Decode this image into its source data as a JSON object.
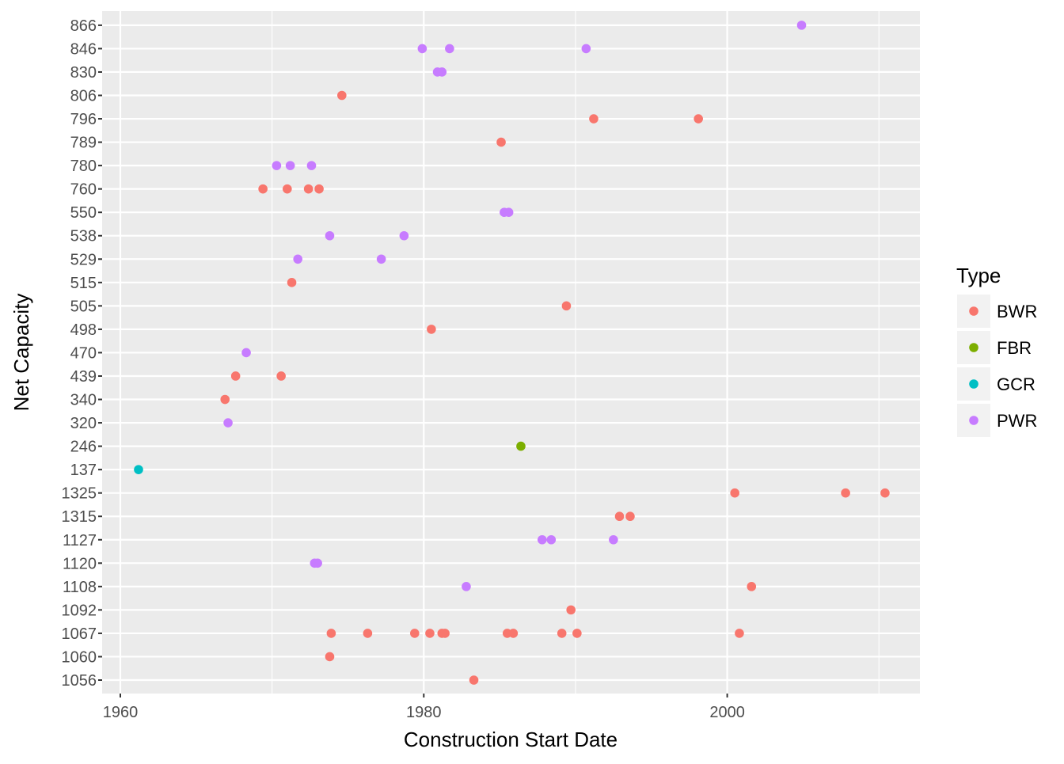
{
  "chart_data": {
    "type": "scatter",
    "xlabel": "Construction Start Date",
    "ylabel": "Net Capacity",
    "x_ticks": [
      1960,
      1980,
      2000
    ],
    "xlim": [
      1958.8,
      2012.7
    ],
    "y_categories": [
      "1056",
      "1060",
      "1067",
      "1092",
      "1108",
      "1120",
      "1127",
      "1315",
      "1325",
      "137",
      "246",
      "320",
      "340",
      "439",
      "470",
      "498",
      "505",
      "515",
      "529",
      "538",
      "550",
      "760",
      "780",
      "789",
      "796",
      "806",
      "830",
      "846",
      "866"
    ],
    "y_categories_note": "ordered bottom to top as shown",
    "grid": true,
    "legend": {
      "title": "Type",
      "position": "right",
      "entries": [
        {
          "label": "BWR",
          "color": "#F8766D"
        },
        {
          "label": "FBR",
          "color": "#7CAE00"
        },
        {
          "label": "GCR",
          "color": "#00BFC4"
        },
        {
          "label": "PWR",
          "color": "#C77CFF"
        }
      ]
    },
    "series": [
      {
        "name": "BWR",
        "color": "#F8766D",
        "points": [
          {
            "x": 1974.6,
            "y": "806"
          },
          {
            "x": 1991.2,
            "y": "796"
          },
          {
            "x": 1998.1,
            "y": "796"
          },
          {
            "x": 1985.1,
            "y": "789"
          },
          {
            "x": 1969.4,
            "y": "760"
          },
          {
            "x": 1971.0,
            "y": "760"
          },
          {
            "x": 1972.4,
            "y": "760"
          },
          {
            "x": 1973.1,
            "y": "760"
          },
          {
            "x": 1971.3,
            "y": "515"
          },
          {
            "x": 1989.4,
            "y": "505"
          },
          {
            "x": 1980.5,
            "y": "498"
          },
          {
            "x": 1967.6,
            "y": "439"
          },
          {
            "x": 1970.6,
            "y": "439"
          },
          {
            "x": 1966.9,
            "y": "340"
          },
          {
            "x": 2000.5,
            "y": "1325"
          },
          {
            "x": 2007.8,
            "y": "1325"
          },
          {
            "x": 2010.4,
            "y": "1325"
          },
          {
            "x": 1992.9,
            "y": "1315"
          },
          {
            "x": 1993.6,
            "y": "1315"
          },
          {
            "x": 2001.6,
            "y": "1108"
          },
          {
            "x": 1989.7,
            "y": "1092"
          },
          {
            "x": 1973.9,
            "y": "1067"
          },
          {
            "x": 1976.3,
            "y": "1067"
          },
          {
            "x": 1979.4,
            "y": "1067"
          },
          {
            "x": 1980.4,
            "y": "1067"
          },
          {
            "x": 1981.2,
            "y": "1067"
          },
          {
            "x": 1981.4,
            "y": "1067"
          },
          {
            "x": 1985.5,
            "y": "1067"
          },
          {
            "x": 1985.9,
            "y": "1067"
          },
          {
            "x": 1989.1,
            "y": "1067"
          },
          {
            "x": 1990.1,
            "y": "1067"
          },
          {
            "x": 2000.8,
            "y": "1067"
          },
          {
            "x": 1973.8,
            "y": "1060"
          },
          {
            "x": 1983.3,
            "y": "1056"
          }
        ]
      },
      {
        "name": "FBR",
        "color": "#7CAE00",
        "points": [
          {
            "x": 1986.4,
            "y": "246"
          }
        ]
      },
      {
        "name": "GCR",
        "color": "#00BFC4",
        "points": [
          {
            "x": 1961.2,
            "y": "137"
          }
        ]
      },
      {
        "name": "PWR",
        "color": "#C77CFF",
        "points": [
          {
            "x": 2004.9,
            "y": "866"
          },
          {
            "x": 1979.9,
            "y": "846"
          },
          {
            "x": 1981.7,
            "y": "846"
          },
          {
            "x": 1990.7,
            "y": "846"
          },
          {
            "x": 1980.9,
            "y": "830"
          },
          {
            "x": 1981.2,
            "y": "830"
          },
          {
            "x": 1970.3,
            "y": "780"
          },
          {
            "x": 1971.2,
            "y": "780"
          },
          {
            "x": 1972.6,
            "y": "780"
          },
          {
            "x": 1985.3,
            "y": "550"
          },
          {
            "x": 1985.6,
            "y": "550"
          },
          {
            "x": 1973.8,
            "y": "538"
          },
          {
            "x": 1978.7,
            "y": "538"
          },
          {
            "x": 1971.7,
            "y": "529"
          },
          {
            "x": 1977.2,
            "y": "529"
          },
          {
            "x": 1968.3,
            "y": "470"
          },
          {
            "x": 1967.1,
            "y": "320"
          },
          {
            "x": 1987.8,
            "y": "1127"
          },
          {
            "x": 1988.4,
            "y": "1127"
          },
          {
            "x": 1992.5,
            "y": "1127"
          },
          {
            "x": 1972.8,
            "y": "1120"
          },
          {
            "x": 1973.0,
            "y": "1120"
          },
          {
            "x": 1982.8,
            "y": "1108"
          }
        ]
      }
    ]
  }
}
